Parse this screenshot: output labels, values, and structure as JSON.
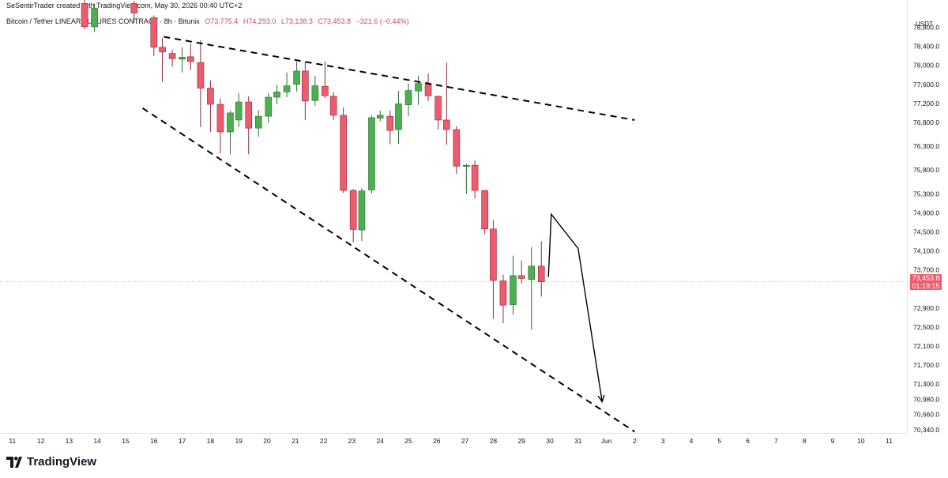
{
  "header": {
    "attribution": "SeSentirTrader created with TradingView.com, May 30, 2026 00:40 UTC+2",
    "symbol": "Bitcoin / Tether LINEAR FUTURES CONTRACT · 8h · Bitunix",
    "open": "O73,775.4",
    "high": "H74,293.0",
    "low": "L73,138.3",
    "close": "C73,453.8",
    "change": "−321.6 (−0.44%)"
  },
  "axis": {
    "currency": "USDT",
    "last_price": "73,453.8",
    "countdown": "01:19:15"
  },
  "brand": {
    "name": "TradingView"
  },
  "colors": {
    "up": "#4caf50",
    "down": "#ef5a6e",
    "grid": "#e0e3eb",
    "text": "#131722"
  },
  "chart_data": {
    "type": "candlestick",
    "x_ticks": [
      "11",
      "12",
      "13",
      "14",
      "15",
      "16",
      "17",
      "18",
      "19",
      "20",
      "21",
      "22",
      "23",
      "24",
      "25",
      "26",
      "27",
      "28",
      "29",
      "30",
      "31",
      "Jun",
      "2",
      "3",
      "4",
      "5",
      "6",
      "7",
      "8",
      "9",
      "10",
      "11"
    ],
    "y_ticks": [
      78800,
      78400,
      78000,
      77600,
      77200,
      76800,
      76300,
      75800,
      75300,
      74900,
      74500,
      74100,
      73700,
      72900,
      72500,
      72100,
      71700,
      71300,
      70980,
      70660,
      70340
    ],
    "y_tick_labels": [
      "78,800.0",
      "78,400.0",
      "78,000.0",
      "77,600.0",
      "77,200.0",
      "76,800.0",
      "76,300.0",
      "75,800.0",
      "75,300.0",
      "74,900.0",
      "74,500.0",
      "74,100.0",
      "73,700.0",
      "72,900.0",
      "72,500.0",
      "72,100.0",
      "71,700.0",
      "71,300.0",
      "70,980.0",
      "70,660.0",
      "70,340.0"
    ],
    "ylim": [
      70220,
      79100
    ],
    "last_price": 73453.8,
    "candles": [
      {
        "x": 13.55,
        "o": 79300,
        "h": 79400,
        "l": 78760,
        "c": 78810
      },
      {
        "x": 13.9,
        "o": 78810,
        "h": 79300,
        "l": 78700,
        "c": 79200
      },
      {
        "x": 15.3,
        "o": 79300,
        "h": 79350,
        "l": 78900,
        "c": 79100
      },
      {
        "x": 16.0,
        "o": 79000,
        "h": 79050,
        "l": 78200,
        "c": 78380
      },
      {
        "x": 16.3,
        "o": 78380,
        "h": 78570,
        "l": 77650,
        "c": 78280
      },
      {
        "x": 16.65,
        "o": 78250,
        "h": 78330,
        "l": 77970,
        "c": 78140
      },
      {
        "x": 17.0,
        "o": 78130,
        "h": 78380,
        "l": 77850,
        "c": 78170
      },
      {
        "x": 17.3,
        "o": 78180,
        "h": 78450,
        "l": 77900,
        "c": 78080
      },
      {
        "x": 17.65,
        "o": 78060,
        "h": 78530,
        "l": 76700,
        "c": 77520
      },
      {
        "x": 18.0,
        "o": 77520,
        "h": 77680,
        "l": 76600,
        "c": 77180
      },
      {
        "x": 18.35,
        "o": 77180,
        "h": 77300,
        "l": 76150,
        "c": 76600
      },
      {
        "x": 18.7,
        "o": 76600,
        "h": 77050,
        "l": 76130,
        "c": 77000
      },
      {
        "x": 19.0,
        "o": 76850,
        "h": 77420,
        "l": 76700,
        "c": 77230
      },
      {
        "x": 19.35,
        "o": 77230,
        "h": 77350,
        "l": 76130,
        "c": 76680
      },
      {
        "x": 19.7,
        "o": 76680,
        "h": 77060,
        "l": 76500,
        "c": 76930
      },
      {
        "x": 20.05,
        "o": 76930,
        "h": 77420,
        "l": 76790,
        "c": 77330
      },
      {
        "x": 20.35,
        "o": 77330,
        "h": 77590,
        "l": 77180,
        "c": 77440
      },
      {
        "x": 20.7,
        "o": 77440,
        "h": 77850,
        "l": 77330,
        "c": 77570
      },
      {
        "x": 21.05,
        "o": 77600,
        "h": 78080,
        "l": 77450,
        "c": 77880
      },
      {
        "x": 21.35,
        "o": 77880,
        "h": 78070,
        "l": 76850,
        "c": 77250
      },
      {
        "x": 21.7,
        "o": 77260,
        "h": 77780,
        "l": 77150,
        "c": 77570
      },
      {
        "x": 22.05,
        "o": 77560,
        "h": 78080,
        "l": 77310,
        "c": 77360
      },
      {
        "x": 22.35,
        "o": 77350,
        "h": 77440,
        "l": 76850,
        "c": 76950
      },
      {
        "x": 22.7,
        "o": 76950,
        "h": 77120,
        "l": 75320,
        "c": 75370
      },
      {
        "x": 23.05,
        "o": 75370,
        "h": 75400,
        "l": 74280,
        "c": 74550
      },
      {
        "x": 23.35,
        "o": 74540,
        "h": 75420,
        "l": 74310,
        "c": 75360
      },
      {
        "x": 23.7,
        "o": 75380,
        "h": 76950,
        "l": 75310,
        "c": 76900
      },
      {
        "x": 24.0,
        "o": 76890,
        "h": 77050,
        "l": 76820,
        "c": 76950
      },
      {
        "x": 24.35,
        "o": 76930,
        "h": 77050,
        "l": 76340,
        "c": 76630
      },
      {
        "x": 24.65,
        "o": 76650,
        "h": 77460,
        "l": 76350,
        "c": 77190
      },
      {
        "x": 25.0,
        "o": 77170,
        "h": 77620,
        "l": 76930,
        "c": 77470
      },
      {
        "x": 25.35,
        "o": 77460,
        "h": 77780,
        "l": 77170,
        "c": 77620
      },
      {
        "x": 25.7,
        "o": 77600,
        "h": 77830,
        "l": 77250,
        "c": 77360
      },
      {
        "x": 26.05,
        "o": 77350,
        "h": 77360,
        "l": 76650,
        "c": 76850
      },
      {
        "x": 26.35,
        "o": 76850,
        "h": 78060,
        "l": 76330,
        "c": 76650
      },
      {
        "x": 26.7,
        "o": 76650,
        "h": 76720,
        "l": 75720,
        "c": 75880
      },
      {
        "x": 27.05,
        "o": 75880,
        "h": 75930,
        "l": 75300,
        "c": 75900
      },
      {
        "x": 27.35,
        "o": 75900,
        "h": 76000,
        "l": 75200,
        "c": 75370
      },
      {
        "x": 27.7,
        "o": 75370,
        "h": 75380,
        "l": 74450,
        "c": 74560
      },
      {
        "x": 28.0,
        "o": 74560,
        "h": 74750,
        "l": 72670,
        "c": 73480
      },
      {
        "x": 28.35,
        "o": 73470,
        "h": 73600,
        "l": 72580,
        "c": 72960
      },
      {
        "x": 28.7,
        "o": 72970,
        "h": 74000,
        "l": 72760,
        "c": 73580
      },
      {
        "x": 29.0,
        "o": 73580,
        "h": 73900,
        "l": 73420,
        "c": 73520
      },
      {
        "x": 29.35,
        "o": 73500,
        "h": 74180,
        "l": 72440,
        "c": 73780
      },
      {
        "x": 29.7,
        "o": 73780,
        "h": 74300,
        "l": 73140,
        "c": 73450
      }
    ],
    "trendlines": [
      {
        "style": "dashed",
        "from": [
          16.35,
          78600
        ],
        "to": [
          33.0,
          76850
        ]
      },
      {
        "style": "dashed",
        "from": [
          15.6,
          77100
        ],
        "to": [
          33.0,
          70300
        ]
      }
    ],
    "projection": [
      [
        29.95,
        73550
      ],
      [
        30.05,
        74870
      ],
      [
        31.0,
        74150
      ],
      [
        31.85,
        70930
      ]
    ],
    "grid": false
  }
}
